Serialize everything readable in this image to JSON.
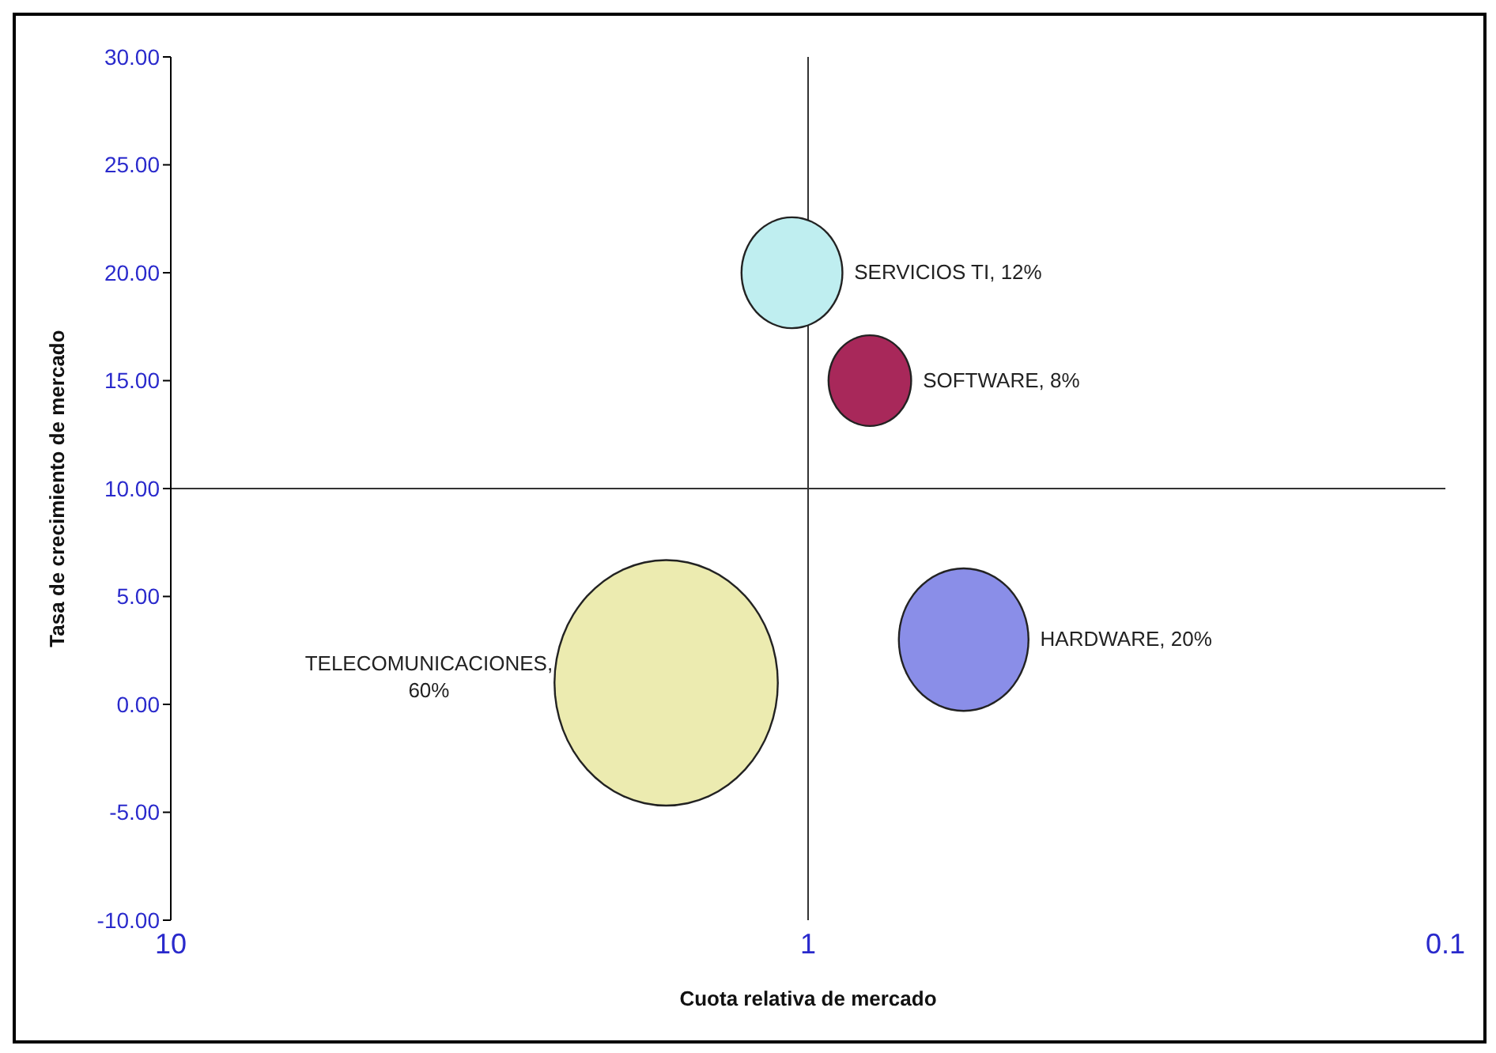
{
  "chart_data": {
    "type": "bubble",
    "xlabel": "Cuota relativa de mercado",
    "ylabel": "Tasa de crecimiento de mercado",
    "log": "x",
    "xlim": [
      10,
      0.1
    ],
    "xticks": [
      10,
      1,
      {
        "value": 0.1,
        "label": "0.1"
      }
    ],
    "ylim": [
      -10,
      30
    ],
    "yticks": [
      {
        "value": -10,
        "label": "-10.00"
      },
      {
        "value": -5,
        "label": "-5.00"
      },
      {
        "value": 0,
        "label": "0.00"
      },
      {
        "value": 5,
        "label": "5.00"
      },
      {
        "value": 10,
        "label": "10.00"
      },
      {
        "value": 15,
        "label": "15.00"
      },
      {
        "value": 20,
        "label": "20.00"
      },
      {
        "value": 25,
        "label": "25.00"
      },
      {
        "value": 30,
        "label": "30.00"
      }
    ],
    "x": [
      1.06,
      0.8,
      0.57,
      1.67
    ],
    "values": [
      20,
      15,
      3,
      1
    ],
    "sizes": [
      0.2,
      0.133,
      0.333,
      1
    ],
    "colors": [
      "#bfeef0",
      "#a8285a",
      "#8a8ee8",
      "#ecebb0"
    ],
    "annotations": [
      "SERVICIOS TI, 12%",
      "SOFTWARE, 8%",
      "HARDWARE, 20%",
      "TELECOMUNICACIONES, 60%"
    ],
    "ref_lines": [
      {
        "axis": "y",
        "value": 10,
        "color": "#333333"
      },
      {
        "axis": "x",
        "value": 1,
        "color": "#333333"
      }
    ],
    "marker": "circle"
  }
}
